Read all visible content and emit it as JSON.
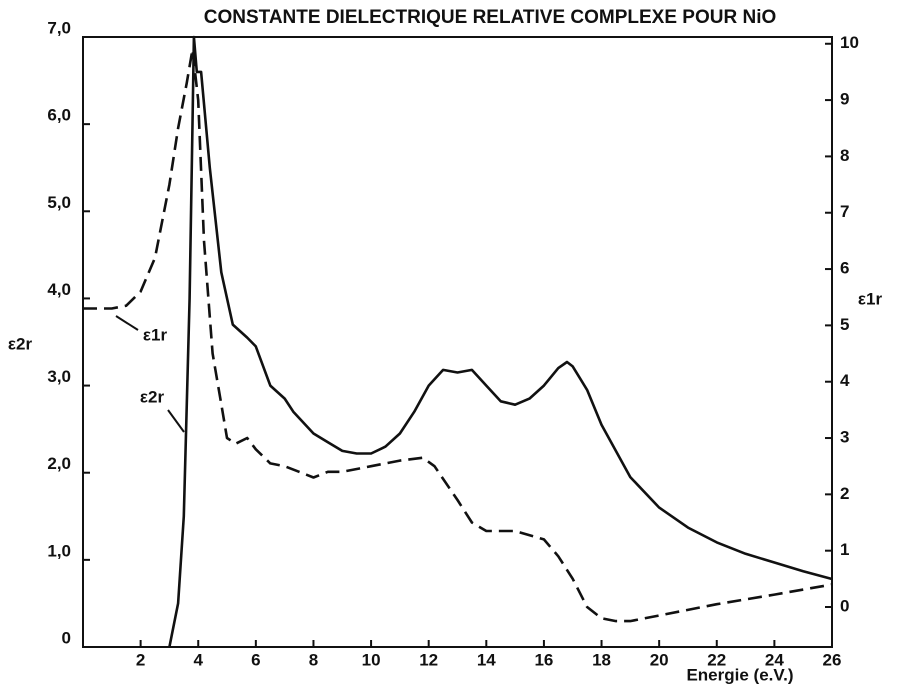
{
  "chart_data": {
    "type": "line",
    "title": "CONSTANTE DIELECTRIQUE RELATIVE COMPLEXE POUR NiO",
    "xlabel": "Energie (e.V.)",
    "ylabel": "ε2r",
    "y2label": "ε1r",
    "xlim": [
      0,
      26
    ],
    "xticks": [
      2,
      4,
      6,
      8,
      10,
      12,
      14,
      16,
      18,
      20,
      22,
      24,
      26
    ],
    "ylim": [
      0,
      7
    ],
    "yticks": [
      0,
      {
        "value": 1,
        "label": "1,0"
      },
      {
        "value": 2,
        "label": "2,0"
      },
      {
        "value": 3,
        "label": "3,0"
      },
      {
        "value": 4,
        "label": "4,0"
      },
      {
        "value": 5,
        "label": "5,0"
      },
      {
        "value": 6,
        "label": "6,0"
      },
      {
        "value": 7,
        "label": "7,0"
      }
    ],
    "y2lim": [
      -0.71,
      10.12
    ],
    "y2ticks": [
      0,
      1,
      2,
      3,
      4,
      5,
      6,
      7,
      8,
      9,
      10
    ],
    "series": [
      {
        "name": "ε2r",
        "color": "#111111",
        "dash": false,
        "x": [
          3.0,
          3.3,
          3.5,
          3.7,
          3.8,
          3.85,
          3.95,
          4.1,
          4.4,
          4.8,
          5.2,
          5.7,
          6.0,
          6.5,
          7.0,
          7.3,
          8.0,
          8.5,
          9.0,
          9.5,
          10,
          10.5,
          11,
          11.5,
          12,
          12.5,
          13,
          13.5,
          14,
          14.5,
          15,
          15.5,
          16,
          16.5,
          16.8,
          17,
          17.5,
          18,
          19,
          20,
          21,
          22,
          23,
          24,
          25,
          26
        ],
        "values": [
          0,
          0.5,
          1.5,
          4.0,
          6.0,
          7.0,
          6.6,
          6.6,
          5.5,
          4.3,
          3.7,
          3.55,
          3.45,
          3.0,
          2.85,
          2.7,
          2.45,
          2.35,
          2.25,
          2.22,
          2.22,
          2.3,
          2.45,
          2.7,
          3.0,
          3.18,
          3.15,
          3.18,
          3.0,
          2.82,
          2.78,
          2.85,
          3.0,
          3.2,
          3.27,
          3.22,
          2.95,
          2.55,
          1.95,
          1.6,
          1.37,
          1.2,
          1.07,
          0.97,
          0.87,
          0.78
        ]
      },
      {
        "name": "ε1r",
        "color": "#111111",
        "dash": true,
        "axis": "y2",
        "x": [
          0,
          1,
          1.5,
          2,
          2.5,
          3,
          3.3,
          3.6,
          3.8,
          4.0,
          4.2,
          4.5,
          4.8,
          5.0,
          5.3,
          5.7,
          6.0,
          6.5,
          7.0,
          7.5,
          8.0,
          8.5,
          9,
          10,
          11,
          11.8,
          12.2,
          13,
          13.5,
          14,
          15,
          16,
          16.5,
          17,
          17.5,
          18,
          18.5,
          19,
          20,
          22,
          24,
          26
        ],
        "values": [
          5.3,
          5.3,
          5.35,
          5.6,
          6.2,
          7.5,
          8.5,
          9.3,
          9.9,
          9.0,
          6.5,
          4.5,
          3.6,
          3.0,
          2.9,
          3.0,
          2.8,
          2.55,
          2.5,
          2.4,
          2.3,
          2.4,
          2.4,
          2.5,
          2.6,
          2.65,
          2.5,
          1.9,
          1.5,
          1.35,
          1.35,
          1.2,
          0.9,
          0.5,
          0.0,
          -0.2,
          -0.25,
          -0.25,
          -0.15,
          0.05,
          0.22,
          0.4
        ]
      }
    ]
  }
}
